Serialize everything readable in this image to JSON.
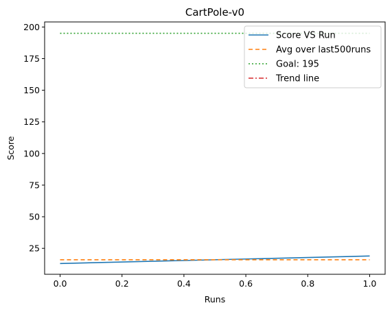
{
  "chart_data": {
    "type": "line",
    "title": "CartPole-v0",
    "xlabel": "Runs",
    "ylabel": "Score",
    "xlim": [
      -0.05,
      1.05
    ],
    "ylim": [
      4.5,
      204
    ],
    "xticks": [
      0.0,
      0.2,
      0.4,
      0.6,
      0.8,
      1.0
    ],
    "xtick_labels": [
      "0.0",
      "0.2",
      "0.4",
      "0.6",
      "0.8",
      "1.0"
    ],
    "yticks": [
      25,
      50,
      75,
      100,
      125,
      150,
      175,
      200
    ],
    "ytick_labels": [
      "25",
      "50",
      "75",
      "100",
      "125",
      "150",
      "175",
      "200"
    ],
    "grid": false,
    "legend_position": "top-right",
    "series": [
      {
        "name": "Score VS Run",
        "color": "#1f77b4",
        "style": "solid",
        "x": [
          0,
          1
        ],
        "values": [
          13,
          19
        ]
      },
      {
        "name": "Avg over last500runs",
        "color": "#ff7f0e",
        "style": "dashed",
        "x": [
          0,
          1
        ],
        "values": [
          16,
          16
        ]
      },
      {
        "name": "Goal: 195",
        "color": "#2ca02c",
        "style": "dotted",
        "x": [
          0,
          1
        ],
        "values": [
          195,
          195
        ]
      },
      {
        "name": "Trend line",
        "color": "#d62728",
        "style": "dashdot",
        "x": [],
        "values": []
      }
    ]
  }
}
